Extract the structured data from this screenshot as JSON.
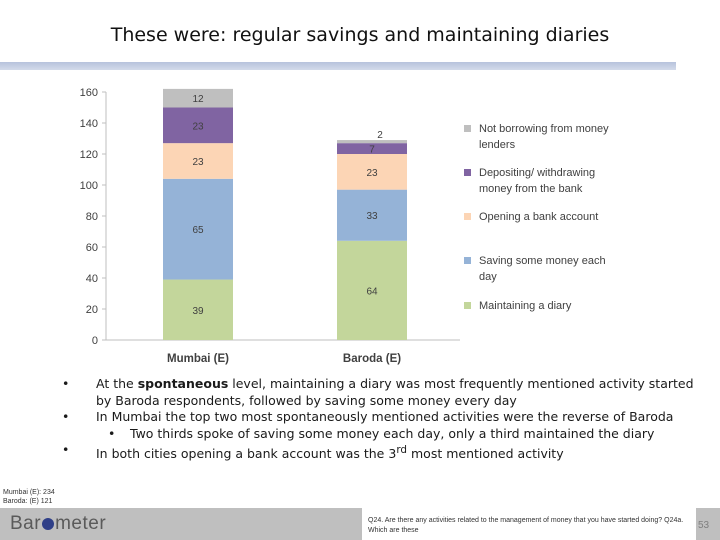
{
  "slide": {
    "title": "These were: regular savings and maintaining diaries",
    "page_number": "53",
    "sample_note": [
      "Mumbai (E): 234",
      "Baroda: (E) 121"
    ],
    "logo": {
      "part1": "Bar",
      "part2": "meter"
    },
    "question": "Q24. Are there any activities related to the management of money that you have started doing? Q24a. Which are these",
    "bullets": [
      {
        "pre": "At the ",
        "bold": "spontaneous",
        "post": " level, maintaining a diary was most frequently mentioned activity started by Baroda respondents, followed by saving some money every day"
      },
      {
        "text": "In Mumbai the top two most spontaneously mentioned activities were the reverse of Baroda"
      },
      {
        "text": "Two thirds spoke of saving some money each day, only a third maintained the diary"
      },
      {
        "pre": "In both cities opening a bank account was the 3",
        "sup": "rd",
        "post": " most mentioned activity"
      }
    ]
  },
  "chart_data": {
    "type": "bar",
    "stacked": true,
    "categories": [
      "Mumbai (E)",
      "Baroda (E)"
    ],
    "ylim": [
      0,
      160
    ],
    "yticks": [
      0,
      20,
      40,
      60,
      80,
      100,
      120,
      140,
      160
    ],
    "grid": false,
    "legend_position": "right",
    "series": [
      {
        "name": "Maintaining a diary",
        "values": [
          39,
          64
        ],
        "color": "#c3d69b"
      },
      {
        "name": "Saving some money each day",
        "values": [
          65,
          33
        ],
        "color": "#95b3d7"
      },
      {
        "name": "Opening a bank account",
        "values": [
          23,
          23
        ],
        "color": "#fcd5b5"
      },
      {
        "name": "Depositing/ withdrawing money from the bank",
        "values": [
          23,
          7
        ],
        "color": "#8064a2"
      },
      {
        "name": "Not borrowing from money lenders",
        "values": [
          12,
          2
        ],
        "color": "#bfbfbf"
      }
    ],
    "legend_order": [
      {
        "lines": [
          "Not borrowing from money",
          "lenders"
        ],
        "series": 4
      },
      {
        "lines": [
          "Depositing/ withdrawing",
          "money from the bank"
        ],
        "series": 3
      },
      {
        "lines": [
          "Opening a bank account"
        ],
        "series": 2
      },
      {
        "lines": [
          "Saving some money each",
          "day"
        ],
        "series": 1
      },
      {
        "lines": [
          "Maintaining a diary"
        ],
        "series": 0
      }
    ]
  }
}
